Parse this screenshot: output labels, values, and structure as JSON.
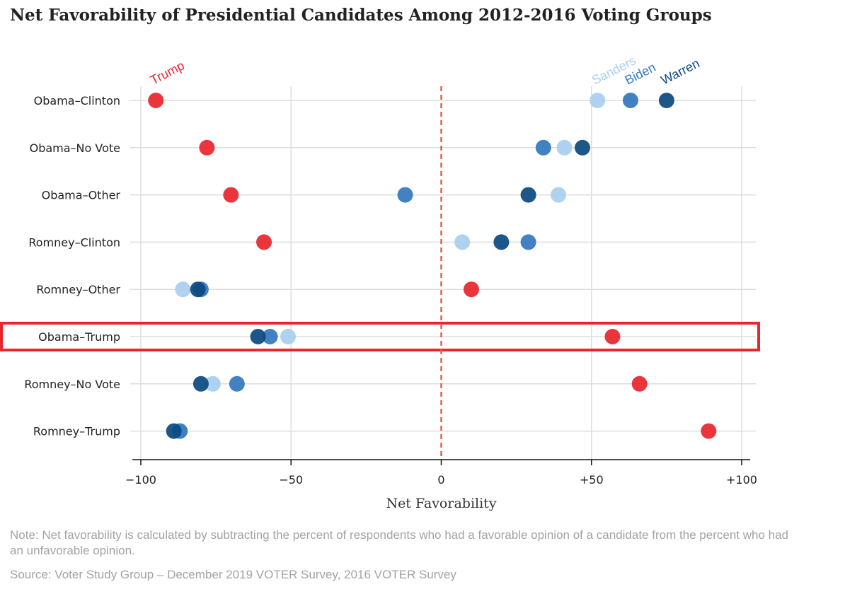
{
  "title": "Net Favorability of Presidential Candidates Among 2012-2016 Voting Groups",
  "note": "Note: Net favorability is calculated by subtracting the percent of respondents who had a favorable opinion of a candidate from the percent who had an unfavorable opinion.",
  "source": "Source: Voter Study Group – December 2019 VOTER Survey, 2016 VOTER Survey",
  "chart_data": {
    "type": "scatter",
    "xlabel": "Net Favorability",
    "xlim": [
      -100,
      100
    ],
    "x_ticks": [
      -100,
      -50,
      0,
      50,
      100
    ],
    "x_tick_labels": [
      "−100",
      "−50",
      "0",
      "+50",
      "+100"
    ],
    "grid": true,
    "reference_line": {
      "x": 0,
      "style": "dashed",
      "color": "#e06050"
    },
    "categories": [
      "Obama–Clinton",
      "Obama–No Vote",
      "Obama–Other",
      "Romney–Clinton",
      "Romney–Other",
      "Obama–Trump",
      "Romney–No Vote",
      "Romney–Trump"
    ],
    "highlighted_category": "Obama–Trump",
    "highlight_color": "#e8262e",
    "series": [
      {
        "name": "Trump",
        "color": "#e8262e",
        "values": [
          -95,
          -78,
          -70,
          -59,
          10,
          57,
          66,
          89
        ]
      },
      {
        "name": "Sanders",
        "color": "#a8cfee",
        "values": [
          52,
          41,
          39,
          7,
          -86,
          -51,
          -76,
          -87
        ]
      },
      {
        "name": "Biden",
        "color": "#3478be",
        "values": [
          63,
          34,
          -12,
          29,
          -80,
          -57,
          -68,
          -87
        ]
      },
      {
        "name": "Warren",
        "color": "#0c4a80",
        "values": [
          75,
          47,
          29,
          20,
          -81,
          -61,
          -80,
          -89
        ]
      }
    ]
  }
}
